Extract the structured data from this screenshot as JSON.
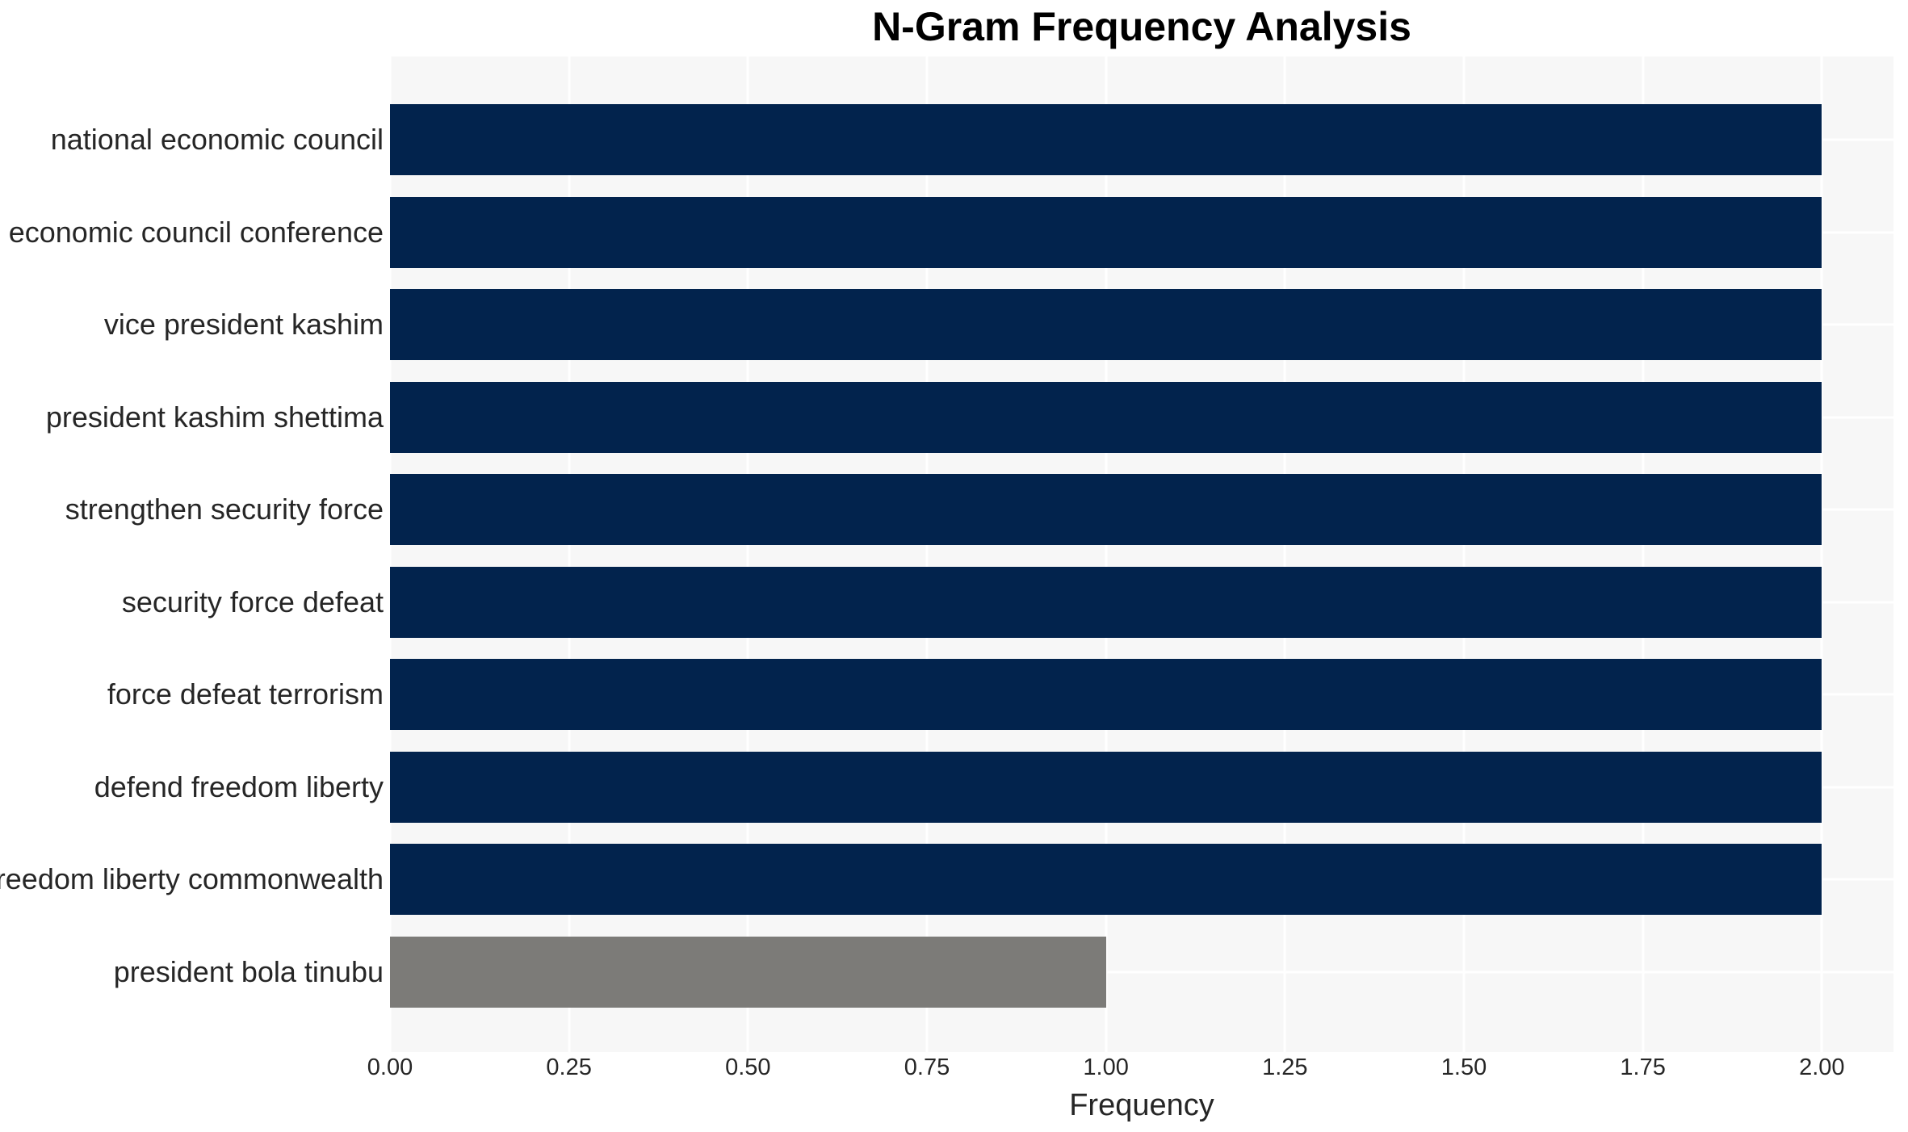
{
  "chart_data": {
    "type": "bar",
    "orientation": "horizontal",
    "title": "N-Gram Frequency Analysis",
    "xlabel": "Frequency",
    "ylabel": "",
    "categories": [
      "national economic council",
      "economic council conference",
      "vice president kashim",
      "president kashim shettima",
      "strengthen security force",
      "security force defeat",
      "force defeat terrorism",
      "defend freedom liberty",
      "freedom liberty commonwealth",
      "president bola tinubu"
    ],
    "values": [
      2,
      2,
      2,
      2,
      2,
      2,
      2,
      2,
      2,
      1
    ],
    "bar_colors": [
      "#02234d",
      "#02234d",
      "#02234d",
      "#02234d",
      "#02234d",
      "#02234d",
      "#02234d",
      "#02234d",
      "#02234d",
      "#7c7b78"
    ],
    "xlim": [
      0,
      2.1
    ],
    "x_ticks": [
      {
        "value": 0.0,
        "label": "0.00"
      },
      {
        "value": 0.25,
        "label": "0.25"
      },
      {
        "value": 0.5,
        "label": "0.50"
      },
      {
        "value": 0.75,
        "label": "0.75"
      },
      {
        "value": 1.0,
        "label": "1.00"
      },
      {
        "value": 1.25,
        "label": "1.25"
      },
      {
        "value": 1.5,
        "label": "1.50"
      },
      {
        "value": 1.75,
        "label": "1.75"
      },
      {
        "value": 2.0,
        "label": "2.00"
      }
    ],
    "grid": {
      "enabled": true,
      "horizontal": true,
      "vertical": true
    },
    "legend": null,
    "colors": {
      "figure_background": "#ffffff",
      "plot_background": "#f7f7f7",
      "gridline": "#ffffff",
      "tick_text": "#262626",
      "title_text": "#000000"
    }
  }
}
